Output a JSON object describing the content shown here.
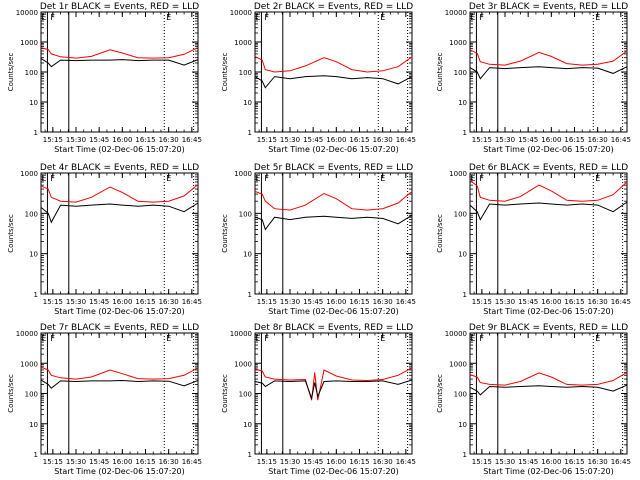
{
  "figure": {
    "ylabel": "Counts/sec",
    "xlabel_prefix": "Start Time (02-Dec-06 15:07:20)"
  },
  "chart_data": [
    {
      "type": "line",
      "title": "Det 1r BLACK = Events, RED = LLD",
      "xlabel": "Start Time (02-Dec-06 15:07:20)",
      "ylabel": "Counts/sec",
      "ylim": [
        1,
        10000
      ],
      "yscale": "log",
      "xlim": [
        "15:07:20",
        "16:49:00"
      ],
      "xticks": [
        "15:15",
        "15:30",
        "15:45",
        "16:00",
        "16:15",
        "16:30",
        "16:45"
      ],
      "yticks": [
        "1",
        "10",
        "100",
        "1000",
        "10000"
      ],
      "annotations": [
        "E",
        "F",
        "E"
      ],
      "vertical_markers": {
        "solid": [
          "15:11:30",
          "15:25:20"
        ],
        "dotted": [
          "16:27:10",
          "16:46:10"
        ]
      },
      "series": [
        {
          "name": "LLD",
          "color": "#ff0000",
          "x": [
            "15:07:20",
            "15:12:00",
            "15:14:00",
            "15:20:00",
            "15:30:00",
            "15:40:00",
            "15:52:00",
            "16:00:00",
            "16:10:00",
            "16:20:00",
            "16:30:00",
            "16:40:00",
            "16:49:00"
          ],
          "values": [
            650,
            560,
            400,
            320,
            290,
            330,
            550,
            430,
            300,
            290,
            300,
            390,
            650
          ]
        },
        {
          "name": "Events",
          "color": "#000000",
          "x": [
            "15:07:20",
            "15:12:00",
            "15:14:00",
            "15:20:00",
            "15:30:00",
            "15:40:00",
            "15:52:00",
            "16:00:00",
            "16:10:00",
            "16:20:00",
            "16:30:00",
            "16:40:00",
            "16:49:00"
          ],
          "values": [
            280,
            200,
            150,
            250,
            240,
            250,
            250,
            260,
            240,
            250,
            250,
            170,
            260
          ]
        }
      ]
    },
    {
      "type": "line",
      "title": "Det 2r BLACK = Events, RED = LLD",
      "xlabel": "Start Time (02-Dec-06 15:07:20)",
      "ylabel": "Counts/sec",
      "ylim": [
        1,
        10000
      ],
      "yscale": "log",
      "xlim": [
        "15:07:20",
        "16:49:00"
      ],
      "xticks": [
        "15:15",
        "15:30",
        "15:45",
        "16:00",
        "16:15",
        "16:30",
        "16:45"
      ],
      "yticks": [
        "1",
        "10",
        "100",
        "1000",
        "10000"
      ],
      "annotations": [
        "E",
        "F",
        "E"
      ],
      "vertical_markers": {
        "solid": [
          "15:11:30",
          "15:25:20"
        ],
        "dotted": [
          "16:27:10",
          "16:46:10"
        ]
      },
      "series": [
        {
          "name": "LLD",
          "color": "#ff0000",
          "x": [
            "15:07:20",
            "15:12:00",
            "15:14:00",
            "15:20:00",
            "15:30:00",
            "15:40:00",
            "15:52:00",
            "16:00:00",
            "16:10:00",
            "16:20:00",
            "16:30:00",
            "16:40:00",
            "16:49:00"
          ],
          "values": [
            330,
            250,
            120,
            100,
            110,
            160,
            300,
            220,
            120,
            100,
            110,
            150,
            320
          ]
        },
        {
          "name": "Events",
          "color": "#000000",
          "x": [
            "15:07:20",
            "15:12:00",
            "15:14:00",
            "15:20:00",
            "15:30:00",
            "15:40:00",
            "15:52:00",
            "16:00:00",
            "16:10:00",
            "16:20:00",
            "16:30:00",
            "16:40:00",
            "16:49:00"
          ],
          "values": [
            70,
            50,
            30,
            70,
            60,
            70,
            75,
            70,
            60,
            65,
            60,
            40,
            70
          ]
        }
      ]
    },
    {
      "type": "line",
      "title": "Det 3r BLACK = Events, RED = LLD",
      "xlabel": "Start Time (02-Dec-06 15:07:20)",
      "ylabel": "Counts/sec",
      "ylim": [
        1,
        10000
      ],
      "yscale": "log",
      "xlim": [
        "15:07:20",
        "16:49:00"
      ],
      "xticks": [
        "15:15",
        "15:30",
        "15:45",
        "16:00",
        "16:15",
        "16:30",
        "16:45"
      ],
      "yticks": [
        "1",
        "10",
        "100",
        "1000",
        "10000"
      ],
      "annotations": [
        "E",
        "F",
        "E"
      ],
      "vertical_markers": {
        "solid": [
          "15:11:30",
          "15:25:20"
        ],
        "dotted": [
          "16:27:10",
          "16:46:10"
        ]
      },
      "series": [
        {
          "name": "LLD",
          "color": "#ff0000",
          "x": [
            "15:07:20",
            "15:12:00",
            "15:14:00",
            "15:20:00",
            "15:30:00",
            "15:40:00",
            "15:52:00",
            "16:00:00",
            "16:10:00",
            "16:20:00",
            "16:30:00",
            "16:40:00",
            "16:49:00"
          ],
          "values": [
            550,
            420,
            220,
            180,
            170,
            230,
            450,
            330,
            190,
            170,
            180,
            230,
            500
          ]
        },
        {
          "name": "Events",
          "color": "#000000",
          "x": [
            "15:07:20",
            "15:12:00",
            "15:14:00",
            "15:20:00",
            "15:30:00",
            "15:40:00",
            "15:52:00",
            "16:00:00",
            "16:10:00",
            "16:20:00",
            "16:30:00",
            "16:40:00",
            "16:49:00"
          ],
          "values": [
            140,
            100,
            60,
            140,
            130,
            140,
            150,
            140,
            130,
            140,
            135,
            90,
            150
          ]
        }
      ]
    },
    {
      "type": "line",
      "title": "Det 4r BLACK = Events, RED = LLD",
      "xlabel": "Start Time (02-Dec-06 15:07:20)",
      "ylabel": "Counts/sec",
      "ylim": [
        1,
        1000
      ],
      "yscale": "log",
      "xlim": [
        "15:07:20",
        "16:49:00"
      ],
      "xticks": [
        "15:15",
        "15:30",
        "15:45",
        "16:00",
        "16:15",
        "16:30",
        "16:45"
      ],
      "yticks": [
        "1",
        "10",
        "100",
        "1000"
      ],
      "annotations": [
        "E",
        "F",
        "E"
      ],
      "vertical_markers": {
        "solid": [
          "15:11:30",
          "15:25:20"
        ],
        "dotted": [
          "16:27:10",
          "16:46:10"
        ]
      },
      "series": [
        {
          "name": "LLD",
          "color": "#ff0000",
          "x": [
            "15:07:20",
            "15:12:00",
            "15:14:00",
            "15:20:00",
            "15:30:00",
            "15:40:00",
            "15:52:00",
            "16:00:00",
            "16:10:00",
            "16:20:00",
            "16:30:00",
            "16:40:00",
            "16:49:00"
          ],
          "values": [
            480,
            400,
            250,
            200,
            190,
            250,
            450,
            330,
            200,
            190,
            200,
            270,
            520
          ]
        },
        {
          "name": "Events",
          "color": "#000000",
          "x": [
            "15:07:20",
            "15:12:00",
            "15:14:00",
            "15:20:00",
            "15:30:00",
            "15:40:00",
            "15:52:00",
            "16:00:00",
            "16:10:00",
            "16:20:00",
            "16:30:00",
            "16:40:00",
            "16:49:00"
          ],
          "values": [
            140,
            100,
            60,
            160,
            150,
            160,
            170,
            160,
            150,
            160,
            150,
            110,
            180
          ]
        }
      ]
    },
    {
      "type": "line",
      "title": "Det 5r BLACK = Events, RED = LLD",
      "xlabel": "Start Time (02-Dec-06 15:07:20)",
      "ylabel": "Counts/sec",
      "ylim": [
        1,
        1000
      ],
      "yscale": "log",
      "xlim": [
        "15:07:20",
        "16:49:00"
      ],
      "xticks": [
        "15:15",
        "15:30",
        "15:45",
        "16:00",
        "16:15",
        "16:30",
        "16:45"
      ],
      "yticks": [
        "1",
        "10",
        "100",
        "1000"
      ],
      "annotations": [
        "E",
        "F",
        "E"
      ],
      "vertical_markers": {
        "solid": [
          "15:11:30",
          "15:25:20"
        ],
        "dotted": [
          "16:27:10",
          "16:46:10"
        ]
      },
      "series": [
        {
          "name": "LLD",
          "color": "#ff0000",
          "x": [
            "15:07:20",
            "15:12:00",
            "15:14:00",
            "15:20:00",
            "15:30:00",
            "15:40:00",
            "15:52:00",
            "16:00:00",
            "16:10:00",
            "16:20:00",
            "16:30:00",
            "16:40:00",
            "16:49:00"
          ],
          "values": [
            350,
            300,
            200,
            130,
            120,
            160,
            310,
            230,
            130,
            120,
            130,
            180,
            350
          ]
        },
        {
          "name": "Events",
          "color": "#000000",
          "x": [
            "15:07:20",
            "15:12:00",
            "15:14:00",
            "15:20:00",
            "15:30:00",
            "15:40:00",
            "15:52:00",
            "16:00:00",
            "16:10:00",
            "16:20:00",
            "16:30:00",
            "16:40:00",
            "16:49:00"
          ],
          "values": [
            80,
            70,
            40,
            80,
            70,
            80,
            85,
            80,
            75,
            80,
            75,
            55,
            90
          ]
        }
      ]
    },
    {
      "type": "line",
      "title": "Det 6r BLACK = Events, RED = LLD",
      "xlabel": "Start Time (02-Dec-06 15:07:20)",
      "ylabel": "Counts/sec",
      "ylim": [
        1,
        1000
      ],
      "yscale": "log",
      "xlim": [
        "15:07:20",
        "16:49:00"
      ],
      "xticks": [
        "15:15",
        "15:30",
        "15:45",
        "16:00",
        "16:15",
        "16:30",
        "16:45"
      ],
      "yticks": [
        "1",
        "10",
        "100",
        "1000"
      ],
      "annotations": [
        "E",
        "F",
        "E"
      ],
      "vertical_markers": {
        "solid": [
          "15:11:30",
          "15:25:20"
        ],
        "dotted": [
          "16:27:10",
          "16:46:10"
        ]
      },
      "series": [
        {
          "name": "LLD",
          "color": "#ff0000",
          "x": [
            "15:07:20",
            "15:12:00",
            "15:14:00",
            "15:20:00",
            "15:30:00",
            "15:40:00",
            "15:52:00",
            "16:00:00",
            "16:10:00",
            "16:20:00",
            "16:30:00",
            "16:40:00",
            "16:49:00"
          ],
          "values": [
            650,
            480,
            250,
            210,
            200,
            260,
            500,
            360,
            210,
            200,
            210,
            290,
            600
          ]
        },
        {
          "name": "Events",
          "color": "#000000",
          "x": [
            "15:07:20",
            "15:12:00",
            "15:14:00",
            "15:20:00",
            "15:30:00",
            "15:40:00",
            "15:52:00",
            "16:00:00",
            "16:10:00",
            "16:20:00",
            "16:30:00",
            "16:40:00",
            "16:49:00"
          ],
          "values": [
            160,
            110,
            70,
            170,
            160,
            170,
            180,
            170,
            160,
            170,
            160,
            110,
            190
          ]
        }
      ]
    },
    {
      "type": "line",
      "title": "Det 7r BLACK = Events, RED = LLD",
      "xlabel": "Start Time (02-Dec-06 15:07:20)",
      "ylabel": "Counts/sec",
      "ylim": [
        1,
        10000
      ],
      "yscale": "log",
      "xlim": [
        "15:07:20",
        "16:49:00"
      ],
      "xticks": [
        "15:15",
        "15:30",
        "15:45",
        "16:00",
        "16:15",
        "16:30",
        "16:45"
      ],
      "yticks": [
        "1",
        "10",
        "100",
        "1000",
        "10000"
      ],
      "annotations": [
        "E",
        "F",
        "E"
      ],
      "vertical_markers": {
        "solid": [
          "15:11:30",
          "15:25:20"
        ],
        "dotted": [
          "16:27:10",
          "16:46:10"
        ]
      },
      "series": [
        {
          "name": "LLD",
          "color": "#ff0000",
          "x": [
            "15:07:20",
            "15:12:00",
            "15:14:00",
            "15:20:00",
            "15:30:00",
            "15:40:00",
            "15:52:00",
            "16:00:00",
            "16:10:00",
            "16:20:00",
            "16:30:00",
            "16:40:00",
            "16:49:00"
          ],
          "values": [
            750,
            600,
            400,
            330,
            300,
            350,
            600,
            450,
            310,
            300,
            310,
            400,
            700
          ]
        },
        {
          "name": "Events",
          "color": "#000000",
          "x": [
            "15:07:20",
            "15:12:00",
            "15:14:00",
            "15:20:00",
            "15:30:00",
            "15:40:00",
            "15:52:00",
            "16:00:00",
            "16:10:00",
            "16:20:00",
            "16:30:00",
            "16:40:00",
            "16:49:00"
          ],
          "values": [
            280,
            200,
            150,
            260,
            250,
            260,
            260,
            270,
            250,
            260,
            255,
            180,
            270
          ]
        }
      ]
    },
    {
      "type": "line",
      "title": "Det 8r BLACK = Events, RED = LLD",
      "xlabel": "Start Time (02-Dec-06 15:07:20)",
      "ylabel": "Counts/sec",
      "ylim": [
        1,
        10000
      ],
      "yscale": "log",
      "xlim": [
        "15:07:20",
        "16:49:00"
      ],
      "xticks": [
        "15:15",
        "15:30",
        "15:45",
        "16:00",
        "16:15",
        "16:30",
        "16:45"
      ],
      "yticks": [
        "1",
        "10",
        "100",
        "1000",
        "10000"
      ],
      "annotations": [
        "E",
        "F",
        "E"
      ],
      "vertical_markers": {
        "solid": [
          "15:11:30",
          "15:25:20"
        ],
        "dotted": [
          "16:27:10",
          "16:46:10"
        ]
      },
      "series": [
        {
          "name": "LLD",
          "color": "#ff0000",
          "x": [
            "15:07:20",
            "15:12:00",
            "15:14:00",
            "15:20:00",
            "15:30:00",
            "15:40:00",
            "15:44:00",
            "15:46:00",
            "15:48:00",
            "15:52:00",
            "16:00:00",
            "16:10:00",
            "16:20:00",
            "16:30:00",
            "16:40:00",
            "16:49:00"
          ],
          "values": [
            650,
            550,
            350,
            300,
            280,
            290,
            60,
            500,
            60,
            600,
            380,
            280,
            270,
            290,
            400,
            700
          ]
        },
        {
          "name": "Events",
          "color": "#000000",
          "x": [
            "15:07:20",
            "15:12:00",
            "15:14:00",
            "15:20:00",
            "15:30:00",
            "15:40:00",
            "15:44:00",
            "15:46:00",
            "15:48:00",
            "15:52:00",
            "16:00:00",
            "16:10:00",
            "16:20:00",
            "16:30:00",
            "16:40:00",
            "16:49:00"
          ],
          "values": [
            250,
            220,
            170,
            260,
            250,
            260,
            70,
            230,
            80,
            250,
            260,
            250,
            250,
            260,
            200,
            280
          ]
        }
      ]
    },
    {
      "type": "line",
      "title": "Det 9r BLACK = Events, RED = LLD",
      "xlabel": "Start Time (02-Dec-06 15:07:20)",
      "ylabel": "Counts/sec",
      "ylim": [
        1,
        10000
      ],
      "yscale": "log",
      "xlim": [
        "15:07:20",
        "16:49:00"
      ],
      "xticks": [
        "15:15",
        "15:30",
        "15:45",
        "16:00",
        "16:15",
        "16:30",
        "16:45"
      ],
      "yticks": [
        "1",
        "10",
        "100",
        "1000",
        "10000"
      ],
      "annotations": [
        "E",
        "F",
        "E"
      ],
      "vertical_markers": {
        "solid": [
          "15:11:30",
          "15:25:20"
        ],
        "dotted": [
          "16:27:10",
          "16:46:10"
        ]
      },
      "series": [
        {
          "name": "LLD",
          "color": "#ff0000",
          "x": [
            "15:07:20",
            "15:12:00",
            "15:14:00",
            "15:20:00",
            "15:30:00",
            "15:40:00",
            "15:52:00",
            "16:00:00",
            "16:10:00",
            "16:20:00",
            "16:30:00",
            "16:40:00",
            "16:49:00"
          ],
          "values": [
            420,
            350,
            230,
            200,
            190,
            250,
            480,
            350,
            200,
            190,
            200,
            270,
            500
          ]
        },
        {
          "name": "Events",
          "color": "#000000",
          "x": [
            "15:07:20",
            "15:12:00",
            "15:14:00",
            "15:20:00",
            "15:30:00",
            "15:40:00",
            "15:52:00",
            "16:00:00",
            "16:10:00",
            "16:20:00",
            "16:30:00",
            "16:40:00",
            "16:49:00"
          ],
          "values": [
            160,
            120,
            90,
            170,
            160,
            170,
            180,
            170,
            160,
            170,
            160,
            120,
            190
          ]
        }
      ]
    }
  ]
}
